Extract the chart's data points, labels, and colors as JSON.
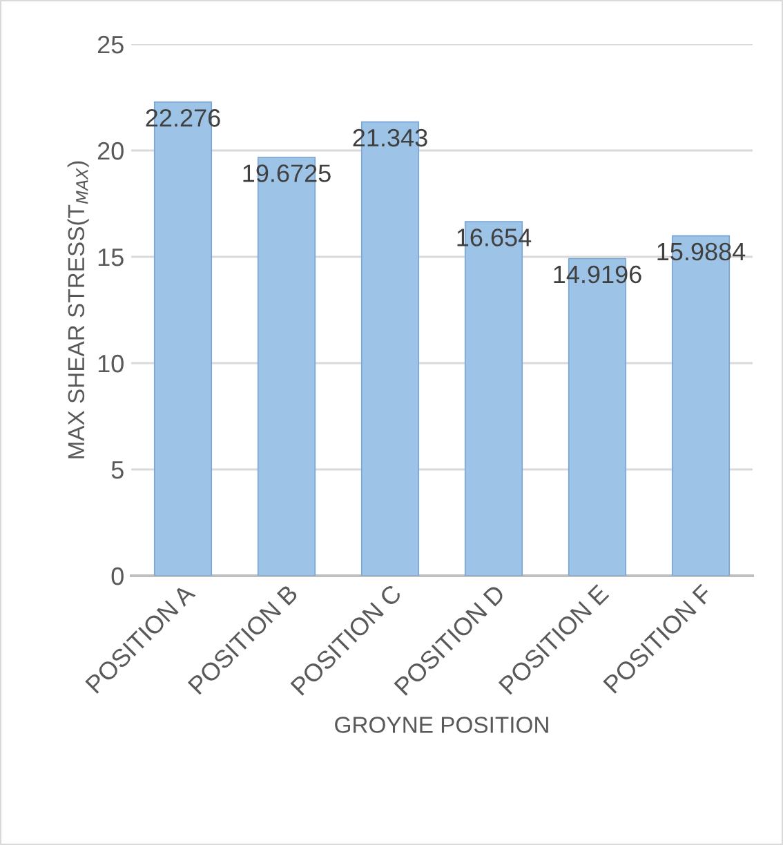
{
  "chart_data": {
    "type": "bar",
    "xlabel": "GROYNE POSITION",
    "ylabel": "MAX SHEAR STRESS(T$_{MAX}$)",
    "categories": [
      "POSITION A",
      "POSITION B",
      "POSITION C",
      "POSITION D",
      "POSITION E",
      "POSITION F"
    ],
    "values": [
      22.276,
      19.6725,
      21.343,
      16.654,
      14.9196,
      15.9884
    ],
    "color": "#9dc3e6",
    "ylim": [
      0,
      25
    ],
    "yticks": [
      0,
      5,
      10,
      15,
      20,
      25
    ],
    "grid": "y",
    "data_labels": true
  }
}
